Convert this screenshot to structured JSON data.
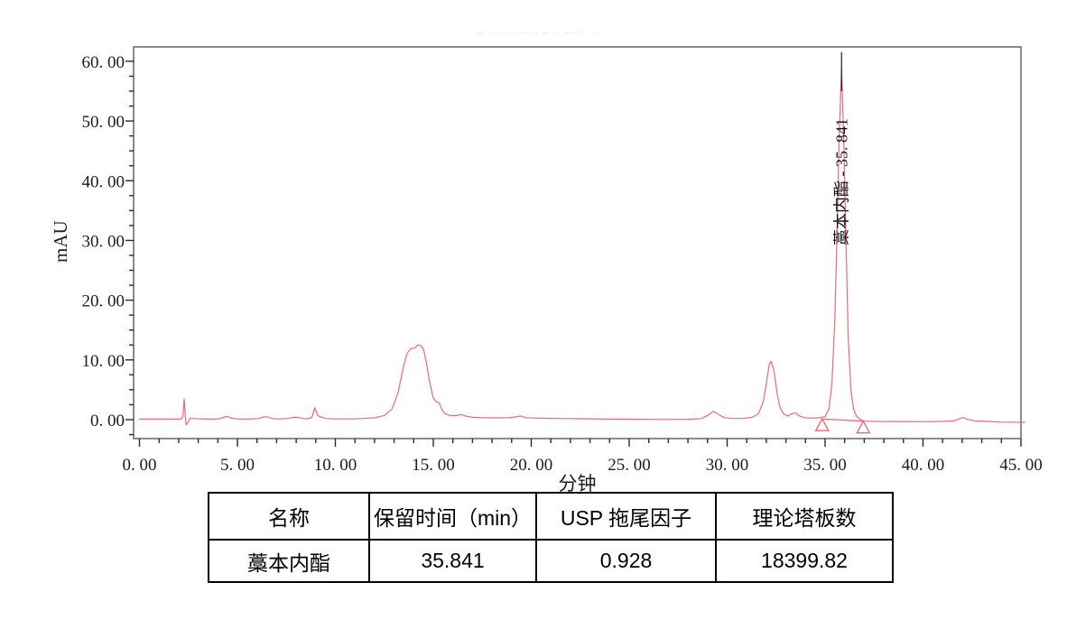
{
  "page": {
    "background": "#ffffff"
  },
  "faded_header": {
    "text": "·· ·· ·· ····· ··  ·      ····· ··"
  },
  "chart_data": {
    "type": "line",
    "title": "",
    "xlabel": "分钟",
    "ylabel": "mAU",
    "xlim": [
      0,
      45
    ],
    "ylim": [
      -3,
      62
    ],
    "grid": false,
    "legend": "none",
    "trace_color": "#ec6a78",
    "frame_color": "#6e6e6e",
    "tick_color": "#2b2b2b",
    "x_ticks": [
      0,
      5,
      10,
      15,
      20,
      25,
      30,
      35,
      40,
      45
    ],
    "x_tick_labels": [
      "0. 00",
      "5. 00",
      "10. 00",
      "15. 00",
      "20. 00",
      "25. 00",
      "30. 00",
      "35. 00",
      "40. 00",
      "45. 00"
    ],
    "x_minor_step": 1,
    "y_ticks": [
      0,
      10,
      20,
      30,
      40,
      50,
      60
    ],
    "y_tick_labels": [
      "0. 00",
      "10. 00",
      "20. 00",
      "30. 00",
      "40. 00",
      "50. 00",
      "60. 00"
    ],
    "y_minor_step": 2.5,
    "peak": {
      "label": "藁本内酯 - 35. 841",
      "name": "藁本内酯",
      "retention_time": 35.841,
      "height_mAU": 59
    },
    "integration": {
      "start_min": 34.85,
      "end_min": 36.95,
      "marker": "open-triangle"
    },
    "series": [
      {
        "name": "UV signal",
        "points": [
          [
            0,
            0.1
          ],
          [
            1,
            0.1
          ],
          [
            2,
            0.1
          ],
          [
            2.15,
            0.15
          ],
          [
            2.22,
            0.6
          ],
          [
            2.28,
            3.5
          ],
          [
            2.33,
            1.0
          ],
          [
            2.38,
            -0.9
          ],
          [
            2.5,
            -0.3
          ],
          [
            2.6,
            0.25
          ],
          [
            2.75,
            0.2
          ],
          [
            3,
            0.15
          ],
          [
            3.6,
            0.1
          ],
          [
            4.1,
            0.15
          ],
          [
            4.35,
            0.45
          ],
          [
            4.5,
            0.55
          ],
          [
            4.7,
            0.25
          ],
          [
            5,
            0.12
          ],
          [
            5.6,
            0.1
          ],
          [
            6.1,
            0.2
          ],
          [
            6.35,
            0.45
          ],
          [
            6.5,
            0.5
          ],
          [
            6.75,
            0.2
          ],
          [
            7.1,
            0.12
          ],
          [
            7.6,
            0.2
          ],
          [
            7.9,
            0.4
          ],
          [
            8.1,
            0.4
          ],
          [
            8.35,
            0.18
          ],
          [
            8.6,
            0.15
          ],
          [
            8.8,
            0.4
          ],
          [
            8.95,
            2.0
          ],
          [
            9.1,
            0.7
          ],
          [
            9.25,
            0.45
          ],
          [
            9.5,
            0.2
          ],
          [
            10,
            0.12
          ],
          [
            10.8,
            0.12
          ],
          [
            11.5,
            0.2
          ],
          [
            12,
            0.3
          ],
          [
            12.5,
            0.7
          ],
          [
            12.9,
            1.8
          ],
          [
            13.2,
            4.5
          ],
          [
            13.45,
            8.5
          ],
          [
            13.65,
            11.0
          ],
          [
            13.85,
            11.9
          ],
          [
            14.05,
            12.0
          ],
          [
            14.2,
            12.5
          ],
          [
            14.35,
            12.4
          ],
          [
            14.5,
            11.8
          ],
          [
            14.65,
            9.5
          ],
          [
            14.8,
            6.5
          ],
          [
            15,
            3.6
          ],
          [
            15.15,
            3.0
          ],
          [
            15.3,
            2.8
          ],
          [
            15.45,
            1.6
          ],
          [
            15.6,
            1.0
          ],
          [
            15.9,
            0.65
          ],
          [
            16.2,
            0.7
          ],
          [
            16.45,
            0.85
          ],
          [
            16.7,
            0.55
          ],
          [
            17,
            0.4
          ],
          [
            17.5,
            0.32
          ],
          [
            18.2,
            0.3
          ],
          [
            18.9,
            0.32
          ],
          [
            19.2,
            0.45
          ],
          [
            19.45,
            0.6
          ],
          [
            19.7,
            0.35
          ],
          [
            20,
            0.28
          ],
          [
            21,
            0.22
          ],
          [
            22,
            0.18
          ],
          [
            23,
            0.14
          ],
          [
            24,
            0.1
          ],
          [
            25,
            0.08
          ],
          [
            26,
            0.05
          ],
          [
            27,
            0.04
          ],
          [
            28,
            0.06
          ],
          [
            28.7,
            0.18
          ],
          [
            29.05,
            0.8
          ],
          [
            29.3,
            1.4
          ],
          [
            29.55,
            0.9
          ],
          [
            29.85,
            0.35
          ],
          [
            30.2,
            0.2
          ],
          [
            30.8,
            0.22
          ],
          [
            31.3,
            0.4
          ],
          [
            31.6,
            1.0
          ],
          [
            31.85,
            3.0
          ],
          [
            32,
            6.0
          ],
          [
            32.15,
            9.3
          ],
          [
            32.25,
            9.8
          ],
          [
            32.4,
            8.0
          ],
          [
            32.55,
            4.5
          ],
          [
            32.7,
            2.0
          ],
          [
            32.9,
            0.9
          ],
          [
            33.1,
            0.6
          ],
          [
            33.3,
            1.0
          ],
          [
            33.5,
            1.1
          ],
          [
            33.7,
            0.6
          ],
          [
            33.95,
            0.35
          ],
          [
            34.3,
            0.25
          ],
          [
            34.7,
            0.3
          ],
          [
            35,
            0.5
          ],
          [
            35.2,
            1.8
          ],
          [
            35.35,
            6
          ],
          [
            35.5,
            17
          ],
          [
            35.62,
            33
          ],
          [
            35.72,
            47
          ],
          [
            35.841,
            59
          ],
          [
            35.96,
            46
          ],
          [
            36.07,
            30
          ],
          [
            36.18,
            14
          ],
          [
            36.32,
            5
          ],
          [
            36.45,
            1.8
          ],
          [
            36.6,
            0.6
          ],
          [
            36.8,
            0
          ],
          [
            37,
            -0.25
          ],
          [
            37.5,
            -0.3
          ],
          [
            38.5,
            -0.32
          ],
          [
            40,
            -0.35
          ],
          [
            41,
            -0.3
          ],
          [
            41.6,
            -0.2
          ],
          [
            41.9,
            0.2
          ],
          [
            42.05,
            0.35
          ],
          [
            42.25,
            0.1
          ],
          [
            42.6,
            -0.2
          ],
          [
            43.2,
            -0.3
          ],
          [
            44,
            -0.4
          ],
          [
            45.2,
            -0.45
          ]
        ]
      }
    ]
  },
  "table": {
    "headers": [
      "名称",
      "保留时间（min）",
      "USP 拖尾因子",
      "理论塔板数"
    ],
    "rows": [
      [
        "藁本内酯",
        "35.841",
        "0.928",
        "18399.82"
      ]
    ]
  }
}
